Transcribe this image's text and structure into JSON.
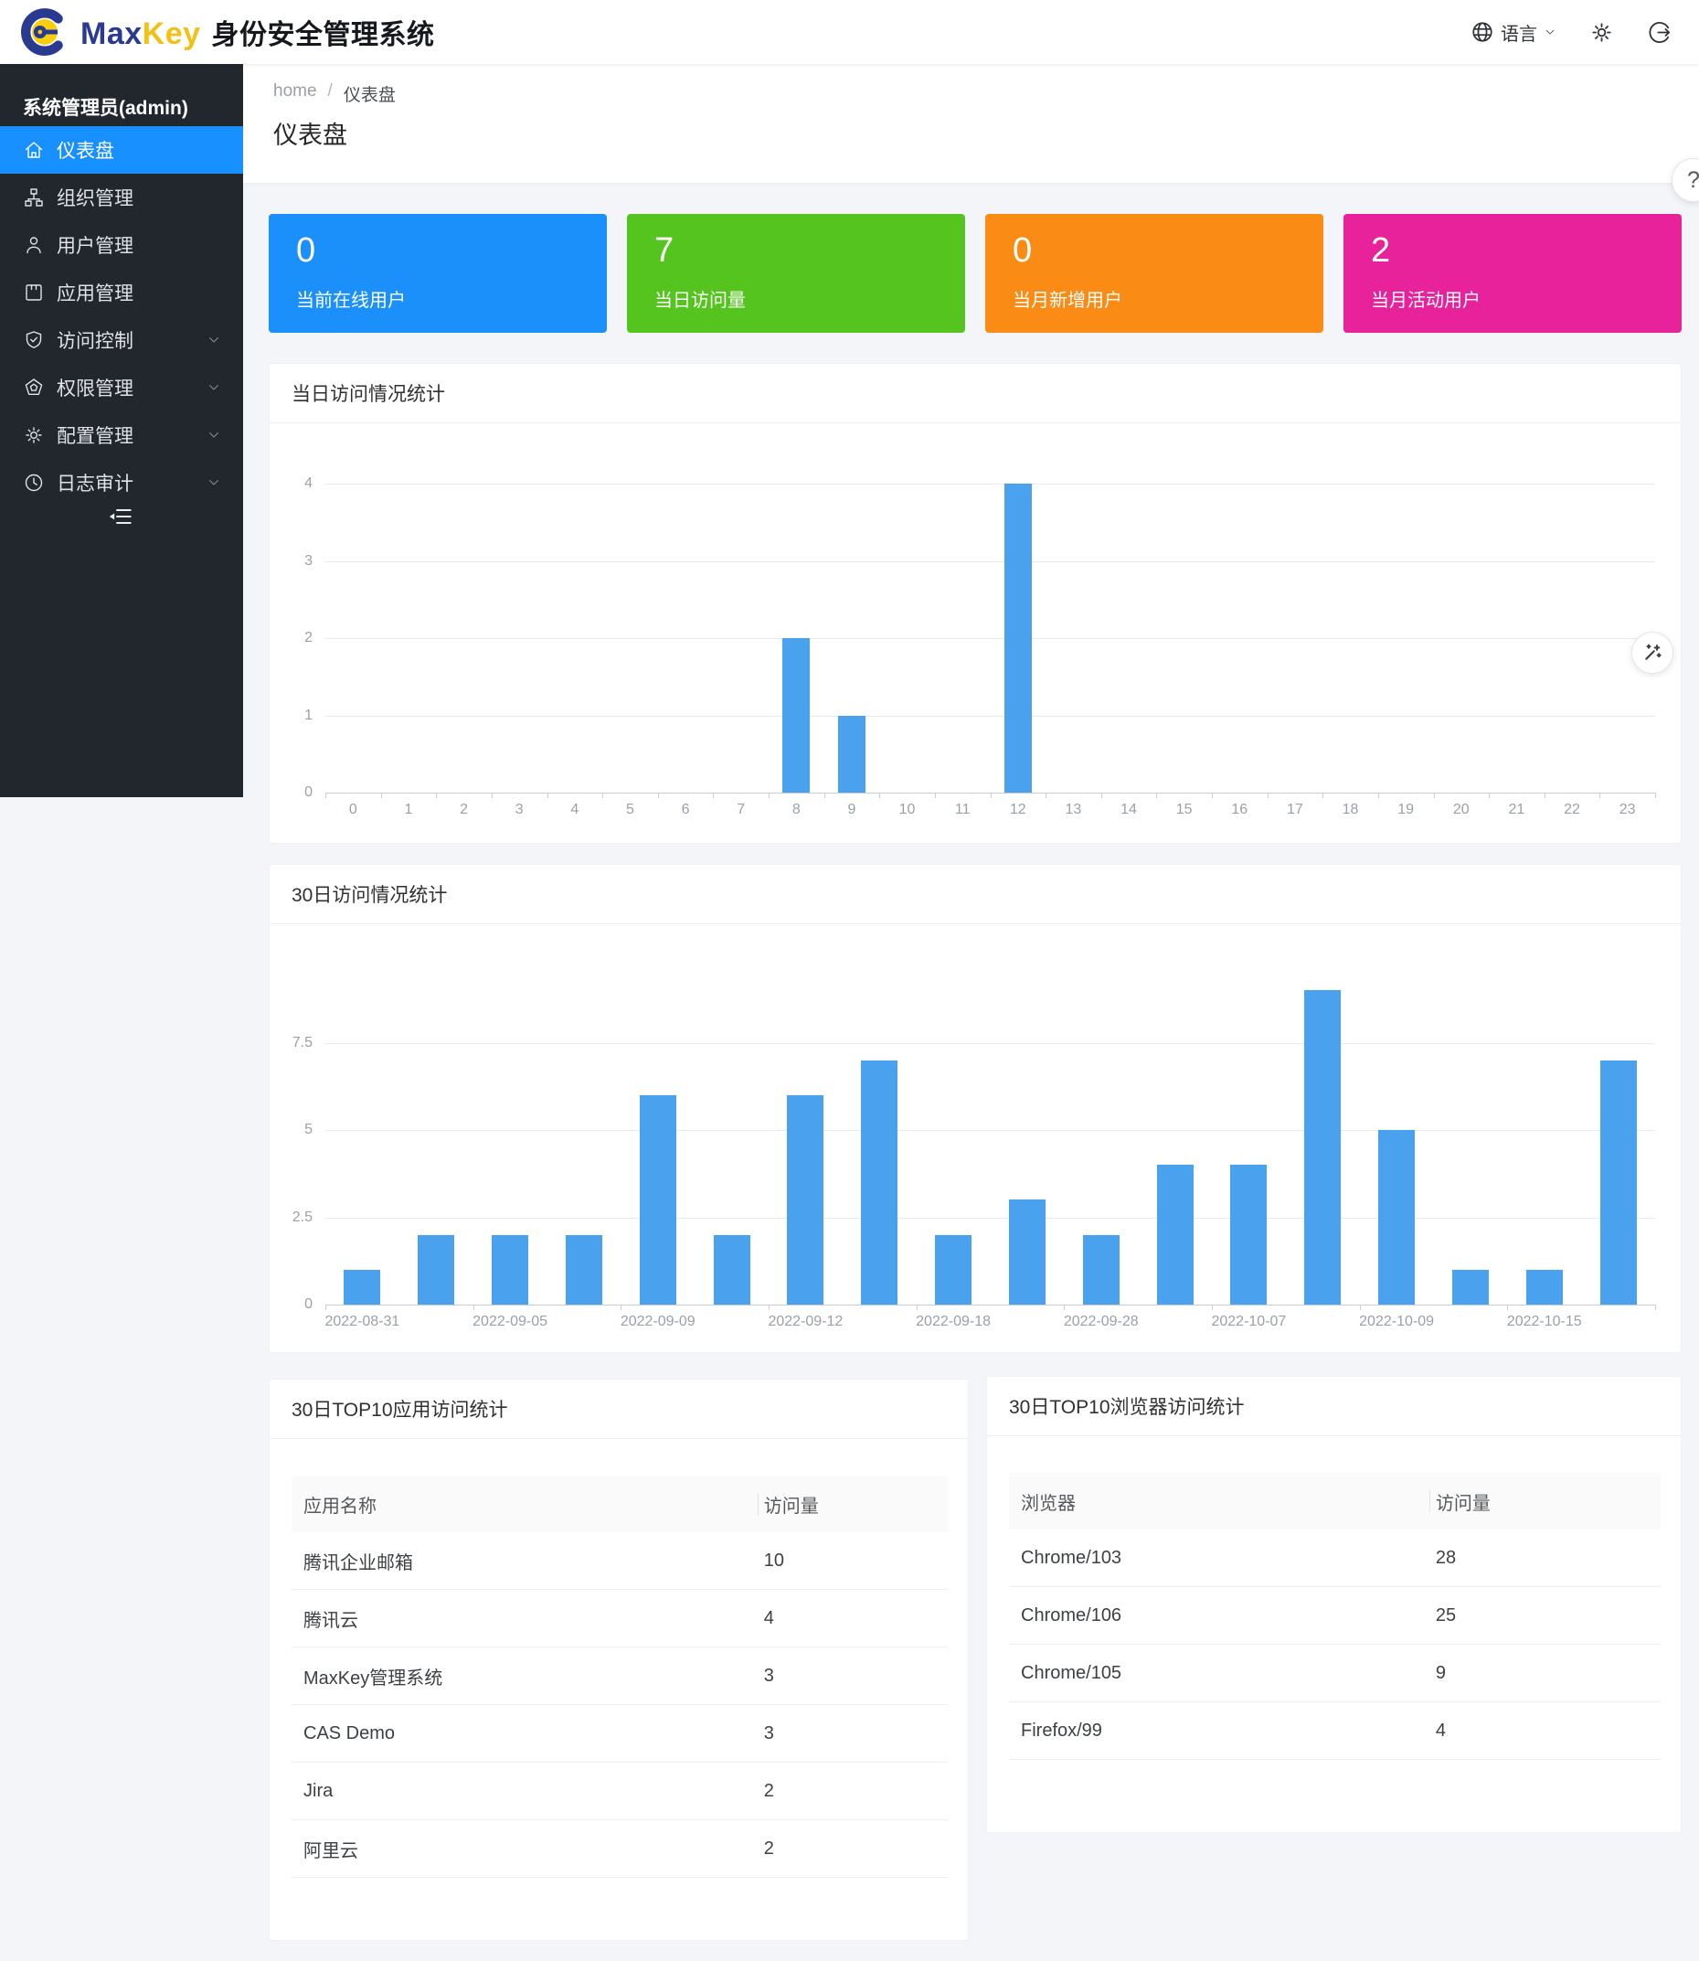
{
  "header": {
    "brand": {
      "max": "Max",
      "key": "Key",
      "product": "身份安全管理系统"
    },
    "actions": {
      "language_label": "语言"
    }
  },
  "sidebar": {
    "user_label": "系统管理员(admin)",
    "active_color": "#1890ff",
    "items": [
      {
        "key": "dashboard",
        "icon": "home",
        "label": "仪表盘",
        "active": true,
        "chevron": false
      },
      {
        "key": "organizations",
        "icon": "org",
        "label": "组织管理",
        "active": false,
        "chevron": false
      },
      {
        "key": "users",
        "icon": "user",
        "label": "用户管理",
        "active": false,
        "chevron": false
      },
      {
        "key": "applications",
        "icon": "app",
        "label": "应用管理",
        "active": false,
        "chevron": false
      },
      {
        "key": "access-control",
        "icon": "shield",
        "label": "访问控制",
        "active": false,
        "chevron": true
      },
      {
        "key": "permissions",
        "icon": "pentagon",
        "label": "权限管理",
        "active": false,
        "chevron": true
      },
      {
        "key": "configuration",
        "icon": "gear",
        "label": "配置管理",
        "active": false,
        "chevron": true
      },
      {
        "key": "audit-log",
        "icon": "clock",
        "label": "日志审计",
        "active": false,
        "chevron": true
      }
    ]
  },
  "breadcrumb": {
    "home": "home",
    "separator": "/",
    "current": "仪表盘"
  },
  "page_title": "仪表盘",
  "stat_cards": [
    {
      "key": "online-users",
      "value": "0",
      "label": "当前在线用户",
      "color": "#1b90fa"
    },
    {
      "key": "daily-visits",
      "value": "7",
      "label": "当日访问量",
      "color": "#55c41e"
    },
    {
      "key": "monthly-new-users",
      "value": "0",
      "label": "当月新增用户",
      "color": "#fa8c16"
    },
    {
      "key": "monthly-active-users",
      "value": "2",
      "label": "当月活动用户",
      "color": "#e7229b"
    }
  ],
  "chart_data": [
    {
      "type": "bar",
      "title": "当日访问情况统计",
      "categories": [
        "0",
        "1",
        "2",
        "3",
        "4",
        "5",
        "6",
        "7",
        "8",
        "9",
        "10",
        "11",
        "12",
        "13",
        "14",
        "15",
        "16",
        "17",
        "18",
        "19",
        "20",
        "21",
        "22",
        "23"
      ],
      "values": [
        0,
        0,
        0,
        0,
        0,
        0,
        0,
        0,
        2,
        1,
        0,
        0,
        4,
        0,
        0,
        0,
        0,
        0,
        0,
        0,
        0,
        0,
        0,
        0
      ],
      "yticks": [
        0,
        1,
        2,
        3,
        4
      ],
      "ylim": [
        0,
        4
      ],
      "xlabel": "",
      "ylabel": "",
      "grid": true,
      "legend": null,
      "bar_color": "#4aa2ef"
    },
    {
      "type": "bar",
      "title": "30日访问情况统计",
      "values": [
        1,
        2,
        2,
        2,
        6,
        2,
        6,
        7,
        2,
        3,
        2,
        4,
        4,
        9,
        5,
        1,
        1,
        7
      ],
      "x_tick_labels": [
        "2022-08-31",
        "2022-09-05",
        "2022-09-09",
        "2022-09-12",
        "2022-09-18",
        "2022-09-28",
        "2022-10-07",
        "2022-10-09",
        "2022-10-15"
      ],
      "label_every": 2,
      "yticks": [
        0,
        2.5,
        5,
        7.5
      ],
      "ylim": [
        0,
        9
      ],
      "xlabel": "",
      "ylabel": "",
      "grid": true,
      "legend": null,
      "bar_color": "#4aa2ef"
    }
  ],
  "tables": {
    "apps": {
      "title": "30日TOP10应用访问统计",
      "columns": [
        "应用名称",
        "访问量"
      ],
      "rows": [
        [
          "腾讯企业邮箱",
          "10"
        ],
        [
          "腾讯云",
          "4"
        ],
        [
          "MaxKey管理系统",
          "3"
        ],
        [
          "CAS Demo",
          "3"
        ],
        [
          "Jira",
          "2"
        ],
        [
          "阿里云",
          "2"
        ]
      ]
    },
    "browsers": {
      "title": "30日TOP10浏览器访问统计",
      "columns": [
        "浏览器",
        "访问量"
      ],
      "rows": [
        [
          "Chrome/103",
          "28"
        ],
        [
          "Chrome/106",
          "25"
        ],
        [
          "Chrome/105",
          "9"
        ],
        [
          "Firefox/99",
          "4"
        ]
      ]
    }
  },
  "floating": {
    "help_label": "?",
    "wand_icon": "magic-wand"
  }
}
